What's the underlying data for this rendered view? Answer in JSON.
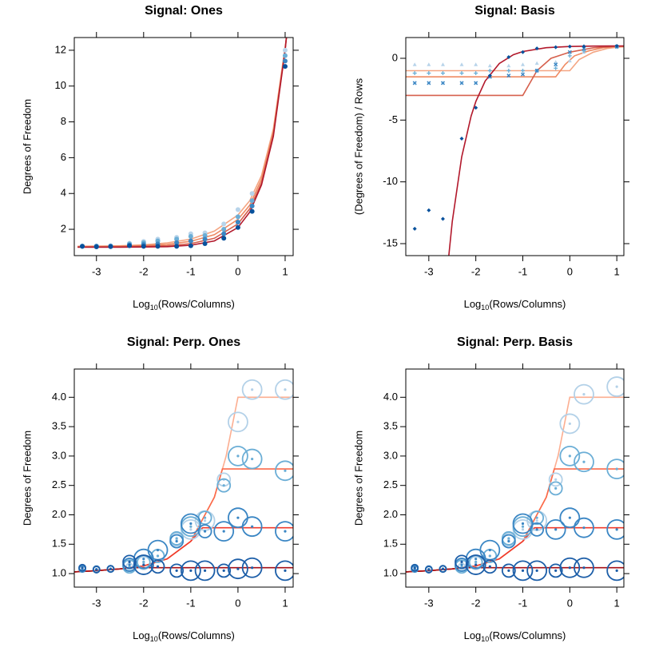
{
  "chart_data": [
    {
      "type": "line",
      "title": "Signal: Ones",
      "xlabel_parts": [
        "Log",
        "10",
        "(Rows/Columns)"
      ],
      "ylabel": "Degrees of Freedom",
      "xlim": [
        -3.47,
        1.17
      ],
      "ylim": [
        0.53,
        12.71
      ],
      "xticks": [
        -3,
        -2,
        -1,
        0,
        1
      ],
      "yticks": [
        2,
        4,
        6,
        8,
        10,
        12
      ],
      "x": [
        -3.3,
        -3,
        -2.7,
        -2.3,
        -2,
        -1.7,
        -1.3,
        -1,
        -0.7,
        -0.3,
        0,
        0.3,
        1
      ],
      "series": [
        {
          "color": "#b8d4ea",
          "marker": "circle",
          "values": [
            1.07,
            1.07,
            1.08,
            1.22,
            1.32,
            1.45,
            1.55,
            1.75,
            1.8,
            2.3,
            3.1,
            4.0,
            12.0
          ]
        },
        {
          "color": "#6baed6",
          "marker": "circle",
          "values": [
            1.06,
            1.06,
            1.07,
            1.18,
            1.25,
            1.35,
            1.45,
            1.6,
            1.65,
            2.0,
            2.7,
            3.6,
            11.7
          ]
        },
        {
          "color": "#3a86c4",
          "marker": "circle",
          "values": [
            1.05,
            1.05,
            1.05,
            1.12,
            1.15,
            1.18,
            1.25,
            1.35,
            1.45,
            1.75,
            2.4,
            3.3,
            11.4
          ]
        },
        {
          "color": "#08519c",
          "marker": "circle",
          "values": [
            1.05,
            1.02,
            1.03,
            1.08,
            1.05,
            1.05,
            1.05,
            1.08,
            1.2,
            1.5,
            2.1,
            3.0,
            11.1
          ]
        }
      ],
      "curves": [
        {
          "color": "#f4a582",
          "x": [
            -3.4,
            -3,
            -2.5,
            -2,
            -1.5,
            -1,
            -0.5,
            0,
            0.25,
            0.5,
            0.75,
            1,
            1.1
          ],
          "values": [
            1.05,
            1.06,
            1.08,
            1.13,
            1.24,
            1.45,
            1.9,
            2.8,
            3.6,
            5.0,
            7.6,
            12.2,
            14
          ]
        },
        {
          "color": "#ef8a62",
          "x": [
            -3.4,
            -3,
            -2.5,
            -2,
            -1.5,
            -1,
            -0.5,
            0,
            0.25,
            0.5,
            0.75,
            1,
            1.1
          ],
          "values": [
            1.03,
            1.04,
            1.06,
            1.09,
            1.16,
            1.33,
            1.7,
            2.55,
            3.35,
            4.8,
            7.45,
            12.1,
            14.3
          ]
        },
        {
          "color": "#d6604d",
          "x": [
            -3.4,
            -3,
            -2.5,
            -2,
            -1.5,
            -1,
            -0.5,
            0,
            0.25,
            0.5,
            0.75,
            1,
            1.1
          ],
          "values": [
            1.01,
            1.02,
            1.03,
            1.05,
            1.08,
            1.2,
            1.5,
            2.3,
            3.15,
            4.6,
            7.3,
            12.05,
            14.6
          ]
        },
        {
          "color": "#b2182b",
          "x": [
            -3.4,
            -3,
            -2.5,
            -2,
            -1.5,
            -1,
            -0.5,
            0,
            0.25,
            0.5,
            0.75,
            1,
            1.1
          ],
          "values": [
            1.0,
            1.0,
            1.0,
            1.01,
            1.03,
            1.11,
            1.35,
            2.1,
            2.96,
            4.48,
            7.19,
            12.0,
            14.85
          ]
        }
      ]
    },
    {
      "type": "line",
      "title": "Signal: Basis",
      "xlabel_parts": [
        "Log",
        "10",
        "(Rows/Columns)"
      ],
      "ylabel": "(Degrees of Freedom) / Rows",
      "xlim": [
        -3.49,
        1.15
      ],
      "ylim": [
        -15.97,
        1.68
      ],
      "xticks": [
        -3,
        -2,
        -1,
        0,
        1
      ],
      "yticks": [
        0,
        -5,
        -10,
        -15
      ],
      "x": [
        -3.3,
        -3,
        -2.7,
        -2.3,
        -2,
        -1.7,
        -1.3,
        -1,
        -0.7,
        -0.3,
        0,
        0.3,
        1
      ],
      "series": [
        {
          "color": "#b8d4ea",
          "marker": "triangle",
          "values": [
            -0.5,
            -0.5,
            -0.5,
            -0.5,
            -0.5,
            -0.6,
            -0.6,
            -0.5,
            -0.4,
            -0.3,
            -0.2,
            0.5,
            0.9
          ]
        },
        {
          "color": "#6baed6",
          "marker": "plus",
          "values": [
            -1.2,
            -1.2,
            -1.2,
            -1.2,
            -1.2,
            -1.0,
            -1.0,
            -1.0,
            -1.0,
            -0.8,
            0.2,
            0.6,
            0.93
          ]
        },
        {
          "color": "#3a86c4",
          "marker": "x",
          "values": [
            -2,
            -2,
            -2,
            -2,
            -2,
            -1.5,
            -1.4,
            -1.3,
            -1,
            -0.5,
            0.5,
            0.8,
            0.95
          ]
        },
        {
          "color": "#08519c",
          "marker": "diamond",
          "values": [
            -13.8,
            -12.3,
            -13,
            -6.5,
            -4,
            -1.4,
            0.1,
            0.5,
            0.8,
            0.9,
            0.95,
            0.97,
            1.0
          ]
        }
      ],
      "curves": [
        {
          "color": "#f4a582",
          "x": [
            -3.49,
            0,
            0.2,
            0.5,
            0.8,
            1,
            1.15
          ],
          "values": [
            -1,
            -1,
            -0.1,
            0.5,
            0.8,
            0.9,
            0.93
          ]
        },
        {
          "color": "#ef8a62",
          "x": [
            -3.49,
            -0.3,
            -0.1,
            0.1,
            0.4,
            0.7,
            1,
            1.15
          ],
          "values": [
            -1.5,
            -1.5,
            -0.5,
            0.2,
            0.6,
            0.85,
            0.95,
            0.97
          ]
        },
        {
          "color": "#d6604d",
          "x": [
            -3.49,
            -1,
            -0.7,
            -0.4,
            0,
            0.5,
            1,
            1.15
          ],
          "values": [
            -3,
            -3,
            -1,
            0,
            0.5,
            0.85,
            0.97,
            0.98
          ]
        },
        {
          "color": "#b2182b",
          "x": [
            -2.6,
            -2.5,
            -2.3,
            -2.1,
            -2,
            -1.8,
            -1.5,
            -1.2,
            -1,
            -0.5,
            0,
            0.5,
            1,
            1.15
          ],
          "values": [
            -16.9,
            -13.2,
            -7.98,
            -4.67,
            -3.5,
            -1.84,
            -0.42,
            0.29,
            0.55,
            0.86,
            0.955,
            0.99,
            1,
            1
          ]
        }
      ]
    },
    {
      "type": "bubble",
      "title": "Signal: Perp. Ones",
      "xlabel_parts": [
        "Log",
        "10",
        "(Rows/Columns)"
      ],
      "ylabel": "Degrees of Freedom",
      "xlim": [
        -3.47,
        1.17
      ],
      "ylim": [
        0.77,
        4.48
      ],
      "xticks": [
        -3,
        -2,
        -1,
        0,
        1
      ],
      "yticks": [
        {
          "value": 1,
          "label": "1.0"
        },
        1.5,
        {
          "value": 2,
          "label": "2.0"
        },
        2.5,
        {
          "value": 3,
          "label": "3.0"
        },
        3.5,
        {
          "value": 4,
          "label": "4.0"
        }
      ],
      "x": [
        -3.3,
        -3,
        -2.7,
        -2.3,
        -2,
        -1.7,
        -1.3,
        -1,
        -0.7,
        -0.3,
        0,
        0.3,
        1
      ],
      "series": [
        {
          "color": "#b3d1e8",
          "values": [
            1.1,
            1.08,
            1.08,
            1.12,
            1.18,
            1.3,
            1.58,
            1.75,
            1.9,
            2.6,
            3.58,
            4.13,
            4.13
          ],
          "sizes": [
            1,
            1,
            1,
            1,
            2,
            2,
            2,
            3,
            3,
            2,
            3,
            3,
            3
          ]
        },
        {
          "color": "#6baed6",
          "values": [
            1.08,
            1.07,
            1.08,
            1.12,
            1.2,
            1.3,
            1.6,
            1.8,
            1.95,
            2.5,
            3.0,
            2.95,
            2.75
          ],
          "sizes": [
            1,
            1,
            1,
            2,
            2,
            2,
            2,
            3,
            2,
            2,
            3,
            3,
            3
          ]
        },
        {
          "color": "#3a86c4",
          "values": [
            1.08,
            1.07,
            1.08,
            1.15,
            1.25,
            1.4,
            1.55,
            1.85,
            1.72,
            1.72,
            1.95,
            1.8,
            1.72
          ],
          "sizes": [
            1,
            1,
            1,
            2,
            3,
            3,
            2,
            3,
            2,
            3,
            3,
            3,
            3
          ]
        },
        {
          "color": "#1c5ea8",
          "values": [
            1.1,
            1.07,
            1.08,
            1.2,
            1.15,
            1.12,
            1.05,
            1.05,
            1.05,
            1.05,
            1.08,
            1.1,
            1.05
          ],
          "sizes": [
            1,
            1,
            1,
            2,
            3,
            2,
            2,
            3,
            3,
            2,
            3,
            3,
            3
          ]
        }
      ],
      "curves": [
        {
          "color": "#fcae91",
          "x": [
            -3.47,
            -3,
            -2.5,
            -2,
            -1.5,
            -1,
            -0.5,
            -0.25,
            0,
            1.17
          ],
          "values": [
            1.03,
            1.05,
            1.08,
            1.13,
            1.25,
            1.55,
            2.3,
            3.0,
            4.0,
            4.0
          ]
        },
        {
          "color": "#fb6a4a",
          "x": [
            -3.47,
            -3,
            -2.5,
            -2,
            -1.5,
            -1,
            -0.5,
            -0.33,
            1.17
          ],
          "values": [
            1.03,
            1.05,
            1.08,
            1.13,
            1.25,
            1.55,
            2.3,
            2.78,
            2.78
          ]
        },
        {
          "color": "#ef3b2c",
          "x": [
            -3.47,
            -3,
            -2.5,
            -2,
            -1.5,
            -1,
            -0.75,
            1.17
          ],
          "values": [
            1.03,
            1.05,
            1.08,
            1.13,
            1.25,
            1.55,
            1.78,
            1.78
          ]
        },
        {
          "color": "#a50f15",
          "x": [
            -3.47,
            -3,
            -2.5,
            -2.2,
            1.17
          ],
          "values": [
            1.03,
            1.05,
            1.08,
            1.1,
            1.1
          ]
        }
      ]
    },
    {
      "type": "bubble",
      "title": "Signal: Perp. Basis",
      "xlabel_parts": [
        "Log",
        "10",
        "(Rows/Columns)"
      ],
      "ylabel": "Degrees of Freedom",
      "xlim": [
        -3.49,
        1.15
      ],
      "ylim": [
        0.77,
        4.48
      ],
      "xticks": [
        -3,
        -2,
        -1,
        0,
        1
      ],
      "yticks": [
        {
          "value": 1,
          "label": "1.0"
        },
        1.5,
        {
          "value": 2,
          "label": "2.0"
        },
        2.5,
        {
          "value": 3,
          "label": "3.0"
        },
        3.5,
        {
          "value": 4,
          "label": "4.0"
        }
      ],
      "x": [
        -3.3,
        -3,
        -2.7,
        -2.3,
        -2,
        -1.7,
        -1.3,
        -1,
        -0.7,
        -0.3,
        0,
        0.3,
        1
      ],
      "series": [
        {
          "color": "#b3d1e8",
          "values": [
            1.1,
            1.08,
            1.08,
            1.12,
            1.18,
            1.3,
            1.58,
            1.75,
            1.9,
            2.6,
            3.55,
            4.05,
            4.18
          ],
          "sizes": [
            1,
            1,
            1,
            1,
            2,
            2,
            2,
            3,
            3,
            2,
            3,
            3,
            3
          ]
        },
        {
          "color": "#6baed6",
          "values": [
            1.08,
            1.07,
            1.08,
            1.12,
            1.2,
            1.3,
            1.6,
            1.8,
            1.95,
            2.45,
            3.0,
            2.9,
            2.78
          ],
          "sizes": [
            1,
            1,
            1,
            2,
            2,
            2,
            2,
            3,
            2,
            2,
            3,
            3,
            3
          ]
        },
        {
          "color": "#3a86c4",
          "values": [
            1.08,
            1.07,
            1.08,
            1.15,
            1.25,
            1.4,
            1.55,
            1.85,
            1.75,
            1.75,
            1.95,
            1.78,
            1.75
          ],
          "sizes": [
            1,
            1,
            1,
            2,
            3,
            3,
            2,
            3,
            2,
            3,
            3,
            3,
            3
          ]
        },
        {
          "color": "#1c5ea8",
          "values": [
            1.1,
            1.07,
            1.08,
            1.2,
            1.15,
            1.12,
            1.05,
            1.05,
            1.05,
            1.05,
            1.1,
            1.1,
            1.05
          ],
          "sizes": [
            1,
            1,
            1,
            2,
            3,
            2,
            2,
            3,
            3,
            2,
            3,
            3,
            3
          ]
        }
      ],
      "curves": [
        {
          "color": "#fcae91",
          "x": [
            -3.49,
            -3,
            -2.5,
            -2,
            -1.5,
            -1,
            -0.5,
            -0.25,
            0,
            1.15
          ],
          "values": [
            1.03,
            1.05,
            1.08,
            1.13,
            1.25,
            1.55,
            2.3,
            3.0,
            4.0,
            4.0
          ]
        },
        {
          "color": "#fb6a4a",
          "x": [
            -3.49,
            -3,
            -2.5,
            -2,
            -1.5,
            -1,
            -0.5,
            -0.33,
            1.15
          ],
          "values": [
            1.03,
            1.05,
            1.08,
            1.13,
            1.25,
            1.55,
            2.3,
            2.78,
            2.78
          ]
        },
        {
          "color": "#ef3b2c",
          "x": [
            -3.49,
            -3,
            -2.5,
            -2,
            -1.5,
            -1,
            -0.75,
            1.15
          ],
          "values": [
            1.03,
            1.05,
            1.08,
            1.13,
            1.25,
            1.55,
            1.78,
            1.78
          ]
        },
        {
          "color": "#a50f15",
          "x": [
            -3.49,
            -3,
            -2.5,
            -2.2,
            1.15
          ],
          "values": [
            1.03,
            1.05,
            1.08,
            1.1,
            1.1
          ]
        }
      ]
    }
  ]
}
